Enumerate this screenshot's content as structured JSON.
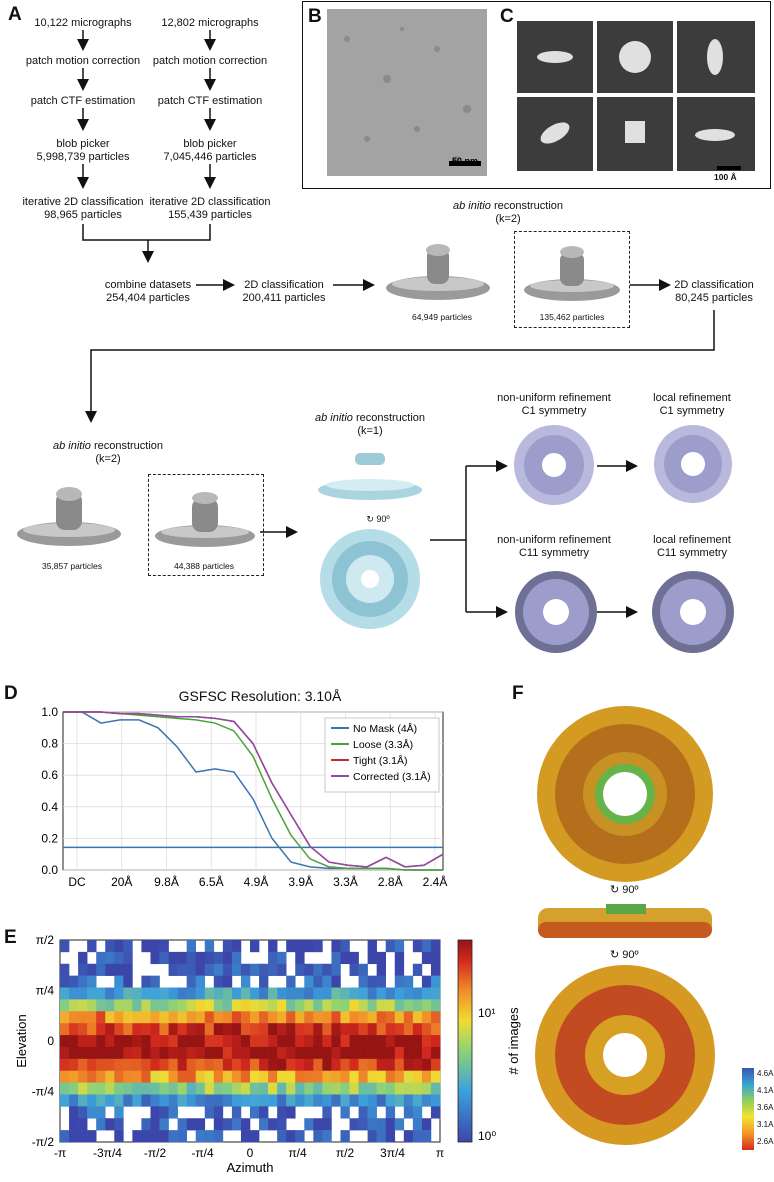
{
  "panel_labels": {
    "a": "A",
    "b": "B",
    "c": "C",
    "d": "D",
    "e": "E",
    "f": "F"
  },
  "panelA": {
    "left": [
      "10,122 micrographs",
      "patch motion correction",
      "patch CTF estimation",
      "blob picker",
      "5,998,739 particles",
      "iterative 2D classification",
      "98,965 particles"
    ],
    "right": [
      "12,802 micrographs",
      "patch motion correction",
      "patch CTF estimation",
      "blob picker",
      "7,045,446 particles",
      "iterative 2D classification",
      "155,439 particles"
    ],
    "combine": [
      "combine datasets",
      "254,404 particles"
    ],
    "class2d_1": [
      "2D classification",
      "200,411 particles"
    ],
    "abinitio_italic": "ab initio",
    "reconstruction": " reconstruction",
    "k2": "(k=2)",
    "k1": "(k=1)",
    "p64949": "64,949 particles",
    "p135462": "135,462 particles",
    "class2d_2": [
      "2D classification",
      "80,245 particles"
    ],
    "p35857": "35,857 particles",
    "p44388": "44,388 particles",
    "rot90": "90º",
    "nu_c1": [
      "non-uniform refinement",
      "C1 symmetry"
    ],
    "local_c1": [
      "local refinement",
      "C1 symmetry"
    ],
    "nu_c11": [
      "non-uniform refinement",
      "C11 symmetry"
    ],
    "local_c11": [
      "local refinement",
      "C11 symmetry"
    ]
  },
  "panelB": {
    "scale": "50 nm"
  },
  "panelC": {
    "scale": "100 Å"
  },
  "panelF": {
    "rot1": "90º",
    "rot2": "90º",
    "colorbar_ticks": [
      "4.6A",
      "4.1A",
      "3.6A",
      "3.1A",
      "2.6A"
    ]
  },
  "chart_data": [
    {
      "type": "line",
      "title": "GSFSC Resolution: 3.10Å",
      "xlabel": "",
      "ylabel": "",
      "x_tick_labels": [
        "DC",
        "20Å",
        "9.8Å",
        "6.5Å",
        "4.9Å",
        "3.9Å",
        "3.3Å",
        "2.8Å",
        "2.4Å"
      ],
      "ylim": [
        0,
        1.0
      ],
      "y_ticks": [
        "0.0",
        "0.2",
        "0.4",
        "0.6",
        "0.8",
        "1.0"
      ],
      "threshold": 0.143,
      "grid": true,
      "legend_position": "top-right",
      "x": [
        0,
        0.05,
        0.1,
        0.15,
        0.2,
        0.25,
        0.3,
        0.35,
        0.4,
        0.45,
        0.5,
        0.55,
        0.6,
        0.65,
        0.7,
        0.75,
        0.8,
        0.85,
        0.9,
        0.95,
        1.0
      ],
      "series": [
        {
          "name": "No Mask (4Å)",
          "color": "#3a74b0",
          "values": [
            1.0,
            1.0,
            0.93,
            0.95,
            0.95,
            0.9,
            0.78,
            0.62,
            0.64,
            0.62,
            0.45,
            0.2,
            0.05,
            0.02,
            0.01,
            0.01,
            0.01,
            0.01,
            0.0,
            0.0,
            0.0
          ]
        },
        {
          "name": "Loose (3.3Å)",
          "color": "#4ba13a",
          "values": [
            1.0,
            1.0,
            1.0,
            0.99,
            0.98,
            0.97,
            0.96,
            0.95,
            0.93,
            0.88,
            0.72,
            0.45,
            0.22,
            0.07,
            0.02,
            0.01,
            0.01,
            0.01,
            0.0,
            0.0,
            0.0
          ]
        },
        {
          "name": "Tight (3.1Å)",
          "color": "#c42d2d",
          "values": [
            1.0,
            1.0,
            1.0,
            0.99,
            0.99,
            0.98,
            0.97,
            0.97,
            0.96,
            0.94,
            0.8,
            0.55,
            0.35,
            0.15,
            0.05,
            0.03,
            0.02,
            0.08,
            0.02,
            0.03,
            0.1
          ]
        },
        {
          "name": "Corrected (3.1Å)",
          "color": "#8d4ca3",
          "values": [
            1.0,
            1.0,
            1.0,
            0.99,
            0.99,
            0.98,
            0.97,
            0.97,
            0.96,
            0.94,
            0.8,
            0.55,
            0.35,
            0.15,
            0.05,
            0.03,
            0.02,
            0.08,
            0.02,
            0.03,
            0.1
          ]
        }
      ]
    },
    {
      "type": "heatmap",
      "xlabel": "Azimuth",
      "ylabel": "Elevation",
      "x_tick_labels": [
        "-π",
        "-3π/4",
        "-π/2",
        "-π/4",
        "0",
        "π/4",
        "π/2",
        "3π/4",
        "π"
      ],
      "y_tick_labels": [
        "π/2",
        "π/4",
        "0",
        "-π/4",
        "-π/2"
      ],
      "colorbar_label": "# of images",
      "colorbar_ticks": [
        "10¹",
        "10⁰"
      ],
      "colorscale": "log",
      "density_by_elevation": [
        0.02,
        0.03,
        0.05,
        0.1,
        0.25,
        0.5,
        0.75,
        0.9,
        1.0,
        1.0,
        0.9,
        0.7,
        0.45,
        0.2,
        0.08,
        0.04,
        0.02
      ]
    }
  ]
}
